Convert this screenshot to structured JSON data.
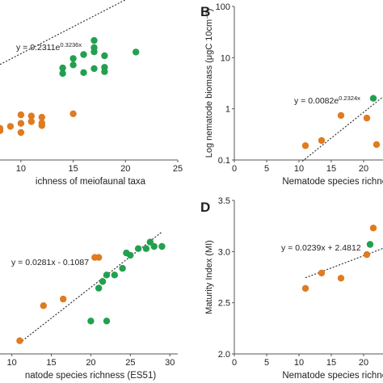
{
  "chart_data": [
    {
      "type": "scatter",
      "panel": "A",
      "panel_label": "",
      "equation": "y = 0.2311e",
      "equation_exp": "0.3236x",
      "xlabel": "ichness of meiofaunal taxa",
      "ylabel": "",
      "xlim": [
        8,
        25
      ],
      "ylim": [
        0.01,
        100
      ],
      "y_scale": "log",
      "x_ticks": [
        "10",
        "15",
        "20",
        "25"
      ],
      "y_ticks": [],
      "trendline": {
        "kind": "exp",
        "a": 0.2311,
        "b": 0.3236,
        "x_range": [
          8,
          21
        ]
      },
      "series": [
        {
          "color": "#e07b20",
          "points": [
            [
              8,
              0.067
            ],
            [
              8,
              0.058
            ],
            [
              9,
              0.075
            ],
            [
              10,
              0.15
            ],
            [
              10,
              0.052
            ],
            [
              10,
              0.09
            ],
            [
              11,
              0.14
            ],
            [
              11,
              0.1
            ],
            [
              12,
              0.13
            ],
            [
              12,
              0.092
            ],
            [
              12,
              0.079
            ],
            [
              15,
              0.16
            ]
          ]
        },
        {
          "color": "#22a050",
          "points": [
            [
              14,
              2.5
            ],
            [
              14,
              1.8
            ],
            [
              15,
              3.0
            ],
            [
              15,
              4.4
            ],
            [
              16,
              1.9
            ],
            [
              16,
              5.6
            ],
            [
              17,
              13
            ],
            [
              17,
              8.5
            ],
            [
              17,
              6.6
            ],
            [
              17,
              2.4
            ],
            [
              18,
              2.6
            ],
            [
              18,
              5.2
            ],
            [
              18,
              2.0
            ],
            [
              21,
              6.5
            ]
          ]
        }
      ]
    },
    {
      "type": "scatter",
      "panel": "B",
      "panel_label": "B",
      "equation": "y = 0.0082e",
      "equation_exp": "0.2324x",
      "xlabel": "Nematode species richness",
      "ylabel": "Log nematode biomass (μgC 10cm⁻²)",
      "xlim": [
        0,
        23
      ],
      "ylim": [
        0.1,
        100
      ],
      "y_scale": "log",
      "x_ticks": [
        "0",
        "5",
        "10",
        "15",
        "20"
      ],
      "y_ticks": [
        "0.1",
        "1",
        "10",
        "100"
      ],
      "trendline": {
        "kind": "exp",
        "a": 0.0082,
        "b": 0.2324,
        "x_range": [
          10.5,
          23
        ]
      },
      "series": [
        {
          "color": "#e07b20",
          "points": [
            [
              11,
              0.19
            ],
            [
              13.5,
              0.24
            ],
            [
              16.5,
              0.74
            ],
            [
              20.5,
              0.66
            ],
            [
              22,
              0.2
            ]
          ]
        },
        {
          "color": "#22a050",
          "points": [
            [
              21.5,
              1.6
            ]
          ]
        }
      ]
    },
    {
      "type": "scatter",
      "panel": "C",
      "panel_label": "",
      "equation": "y = 0.0281x - 0.1087",
      "xlabel": "natode species richness (ES51)",
      "ylabel": "",
      "xlim": [
        8.5,
        31
      ],
      "ylim": [
        0.15,
        0.85
      ],
      "y_scale": "linear",
      "x_ticks": [
        "10",
        "15",
        "20",
        "25",
        "30"
      ],
      "y_ticks": [],
      "trendline": {
        "kind": "linear",
        "m": 0.0281,
        "c": -0.1087,
        "x_range": [
          11,
          29
        ]
      },
      "series": [
        {
          "color": "#e07b20",
          "points": [
            [
              11,
              0.21
            ],
            [
              14,
              0.37
            ],
            [
              16.5,
              0.4
            ],
            [
              20.5,
              0.59
            ],
            [
              21,
              0.59
            ]
          ]
        },
        {
          "color": "#22a050",
          "points": [
            [
              20,
              0.3
            ],
            [
              22,
              0.3
            ],
            [
              21,
              0.45
            ],
            [
              21.5,
              0.48
            ],
            [
              22,
              0.51
            ],
            [
              23,
              0.51
            ],
            [
              24,
              0.54
            ],
            [
              24.5,
              0.61
            ],
            [
              25,
              0.6
            ],
            [
              26,
              0.63
            ],
            [
              27,
              0.63
            ],
            [
              27.5,
              0.66
            ],
            [
              29,
              0.64
            ],
            [
              28,
              0.64
            ]
          ]
        }
      ]
    },
    {
      "type": "scatter",
      "panel": "D",
      "panel_label": "D",
      "equation": "y = 0.0239x + 2.4812",
      "xlabel": "Nematode species richness",
      "ylabel": "Maturity Index (MI)",
      "xlim": [
        0,
        23
      ],
      "ylim": [
        2.0,
        3.5
      ],
      "y_scale": "linear",
      "x_ticks": [
        "0",
        "5",
        "10",
        "15",
        "20"
      ],
      "y_ticks": [
        "2.0",
        "2.5",
        "3.0",
        "3.5"
      ],
      "trendline": {
        "kind": "linear",
        "m": 0.0239,
        "c": 2.4812,
        "x_range": [
          11,
          23
        ]
      },
      "series": [
        {
          "color": "#e07b20",
          "points": [
            [
              11,
              2.64
            ],
            [
              13.5,
              2.79
            ],
            [
              16.5,
              2.74
            ],
            [
              20.5,
              2.97
            ],
            [
              21.5,
              3.23
            ]
          ]
        },
        {
          "color": "#22a050",
          "points": [
            [
              21,
              3.07
            ]
          ]
        }
      ]
    }
  ]
}
